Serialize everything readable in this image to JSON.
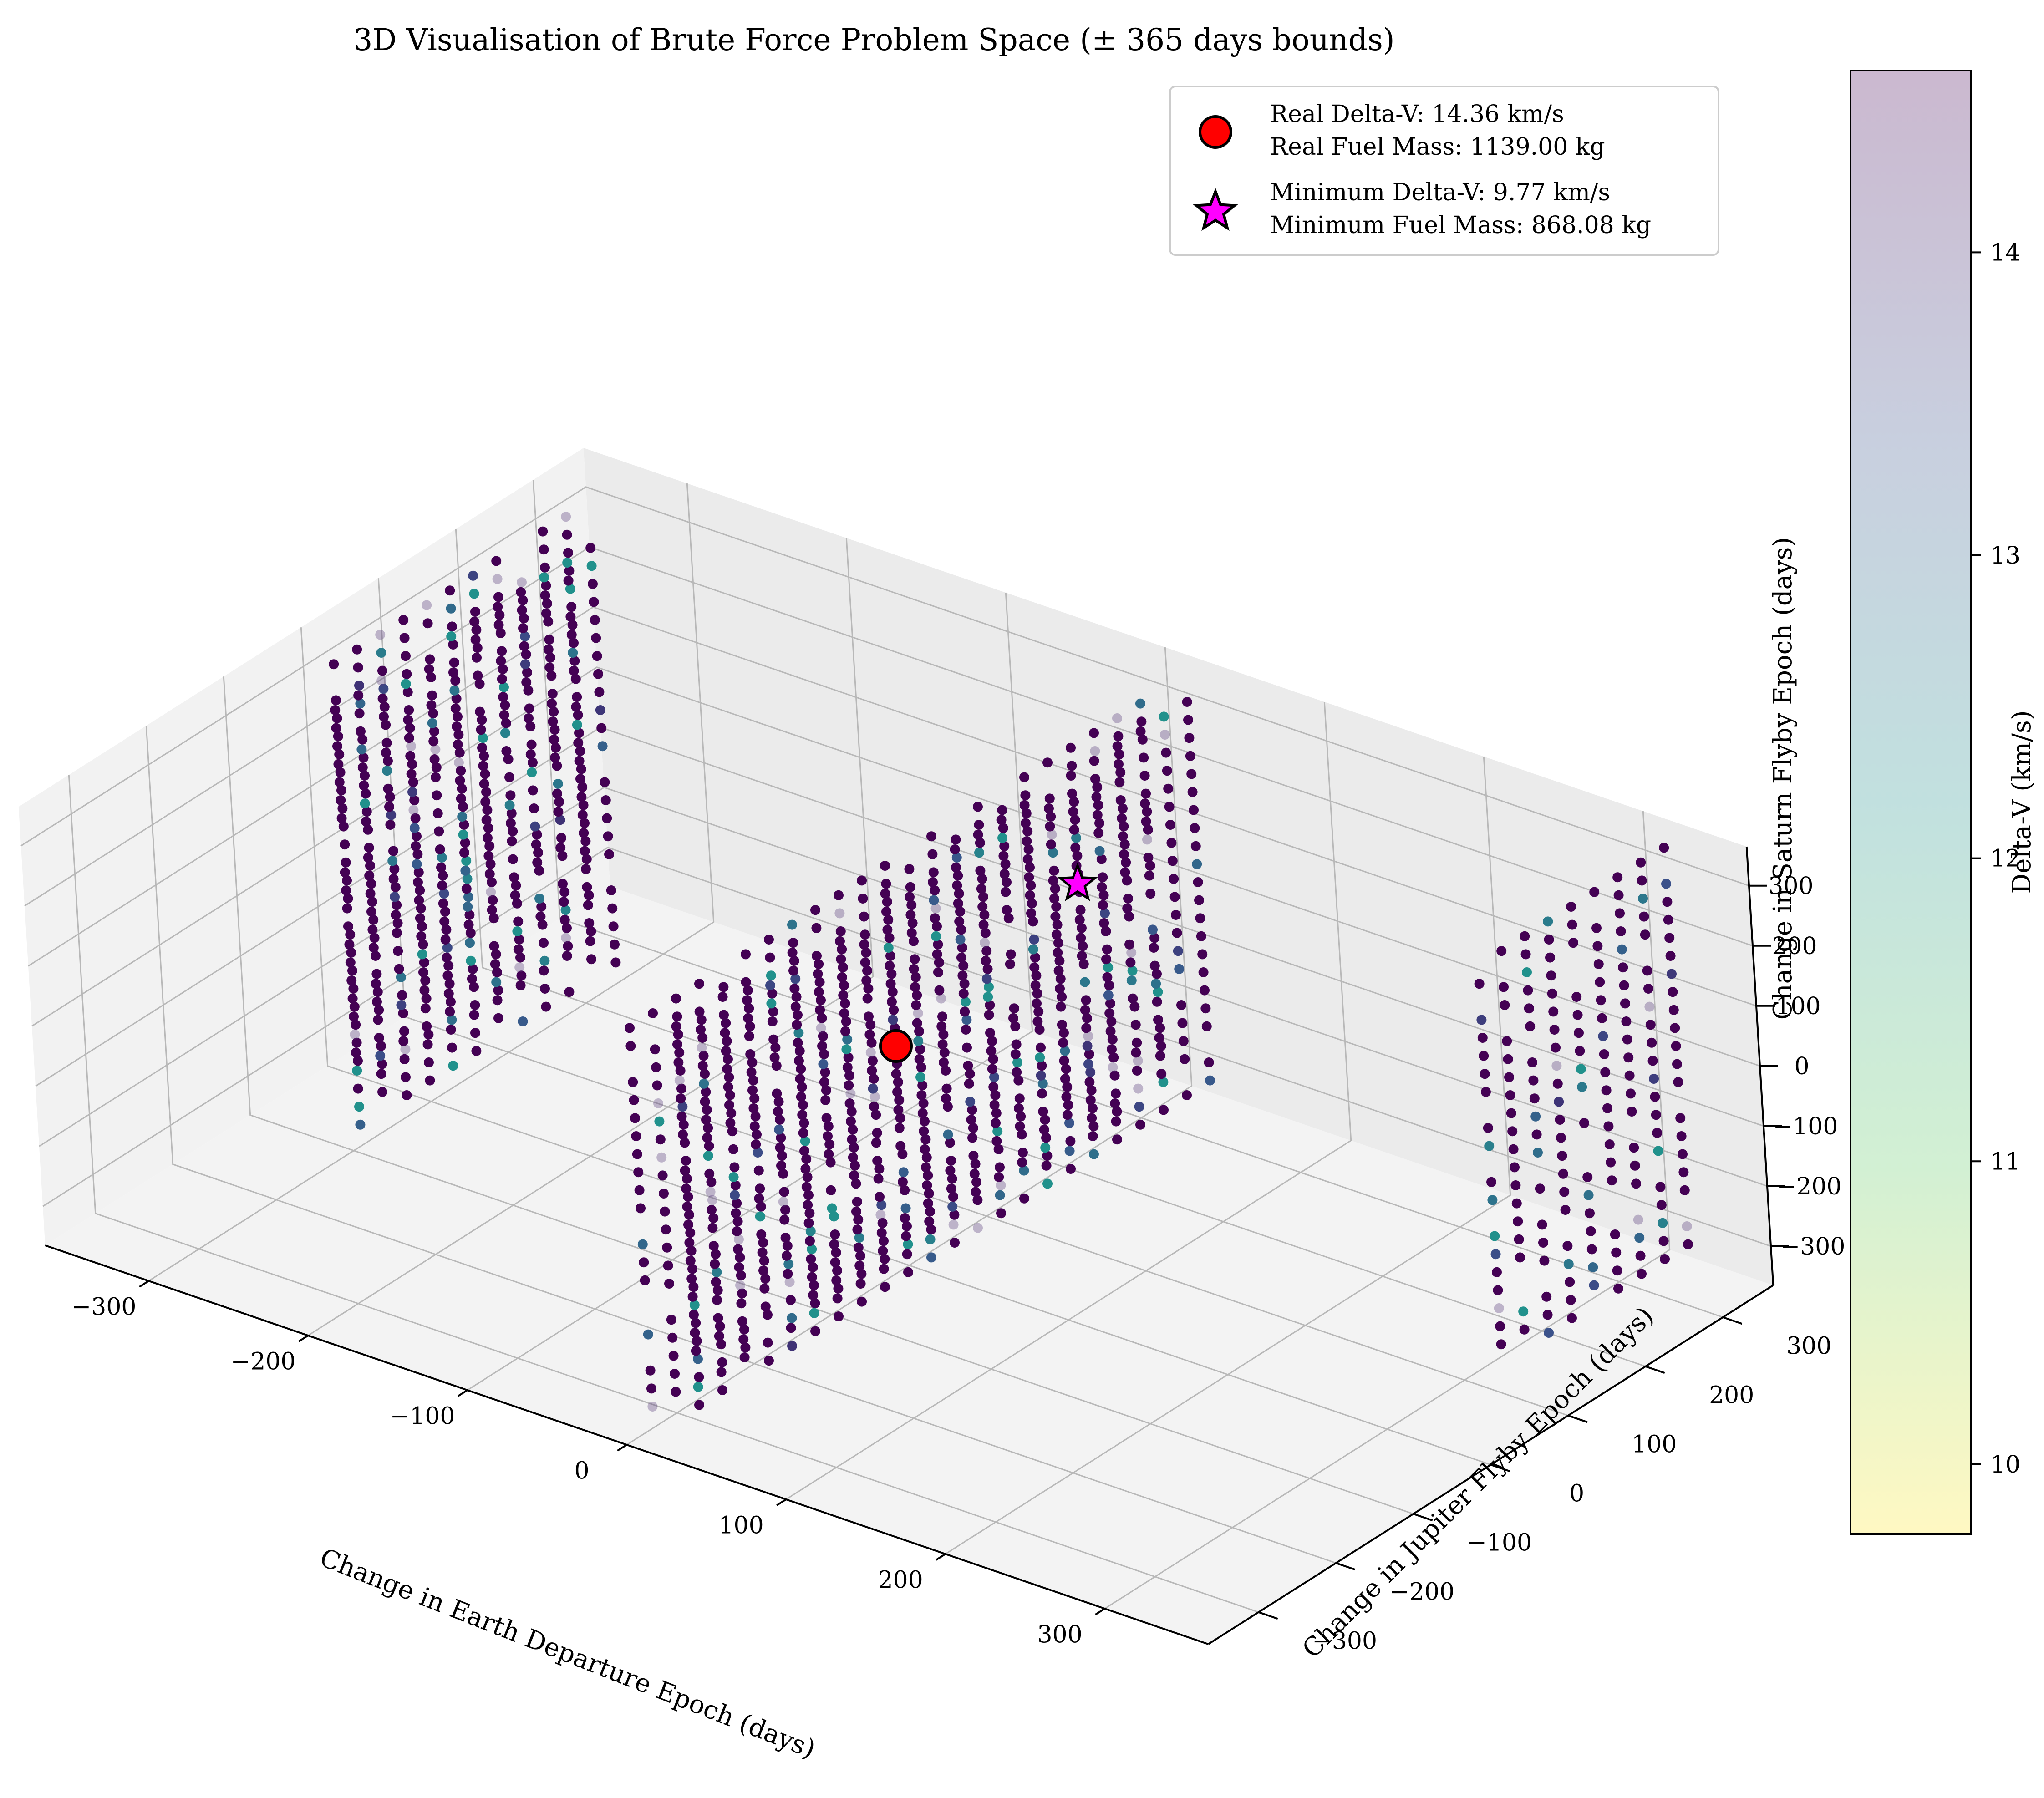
{
  "chart_data": {
    "type": "scatter",
    "projection": "3d",
    "title": "3D Visualisation of Brute Force Problem Space (± 365 days bounds)",
    "xlabel": "Change in Earth Departure Epoch (days)",
    "ylabel": "Change in Jupiter Flyby Epoch (days)",
    "zlabel": "Change in Saturn Flyby Epoch (days)",
    "xlim": [
      -365,
      365
    ],
    "ylim": [
      -365,
      365
    ],
    "zlim": [
      -365,
      365
    ],
    "xticks": [
      -300,
      -200,
      -100,
      0,
      100,
      200,
      300
    ],
    "yticks": [
      -300,
      -200,
      -100,
      0,
      100,
      200,
      300
    ],
    "zticks": [
      -300,
      -200,
      -100,
      0,
      100,
      200,
      300
    ],
    "xtick_labels": [
      "−300",
      "−200",
      "−100",
      "0",
      "100",
      "200",
      "300"
    ],
    "ytick_labels": [
      "−300",
      "−200",
      "−100",
      "0",
      "100",
      "200",
      "300"
    ],
    "ztick_labels": [
      "−300",
      "−200",
      "−100",
      "0",
      "100",
      "200",
      "300"
    ],
    "grid": true,
    "colormap": "viridis_r",
    "colorbar": {
      "label": "Delta-V (km/s)",
      "range": [
        9.77,
        14.6
      ],
      "ticks": [
        10,
        11,
        12,
        13,
        14
      ],
      "tick_labels": [
        "10",
        "11",
        "12",
        "13",
        "14"
      ]
    },
    "legend_position": "top-right",
    "grid_values": [
      -330,
      -300,
      -270,
      -240,
      -210,
      -180,
      -150,
      -120,
      -90,
      -60,
      -30,
      0,
      30,
      60,
      90,
      120,
      150,
      180,
      210,
      240,
      270,
      300,
      330
    ],
    "slabs": [
      {
        "x": -330,
        "y_min": -30,
        "y_max": 270,
        "z_min": -330,
        "z_max": 360
      },
      {
        "x": -300,
        "y_min": -90,
        "y_max": 240,
        "z_min": -330,
        "z_max": 360
      },
      {
        "x": 0,
        "y_min": -330,
        "y_max": 330,
        "z_min": -330,
        "z_max": 300
      },
      {
        "x": 30,
        "y_min": -330,
        "y_max": 330,
        "z_min": -300,
        "z_max": 330
      },
      {
        "x": 330,
        "y_min": 90,
        "y_max": 330,
        "z_min": -300,
        "z_max": 360
      }
    ],
    "series": [
      {
        "name": "Real Delta-V: 14.36 km/s",
        "label_line2": "Real Fuel Mass: 1139.00 kg",
        "marker": "circle",
        "color": "#ff0000",
        "points": [
          {
            "x": 0,
            "y": 0,
            "z": 0,
            "delta_v": 14.36
          }
        ]
      },
      {
        "name": "Minimum Delta-V: 9.77 km/s",
        "label_line2": "Minimum Fuel Mass: 868.08 kg",
        "marker": "star",
        "color": "#ff00ff",
        "points": [
          {
            "x": 30,
            "y": 180,
            "z": 150,
            "delta_v": 9.77
          }
        ]
      }
    ]
  }
}
